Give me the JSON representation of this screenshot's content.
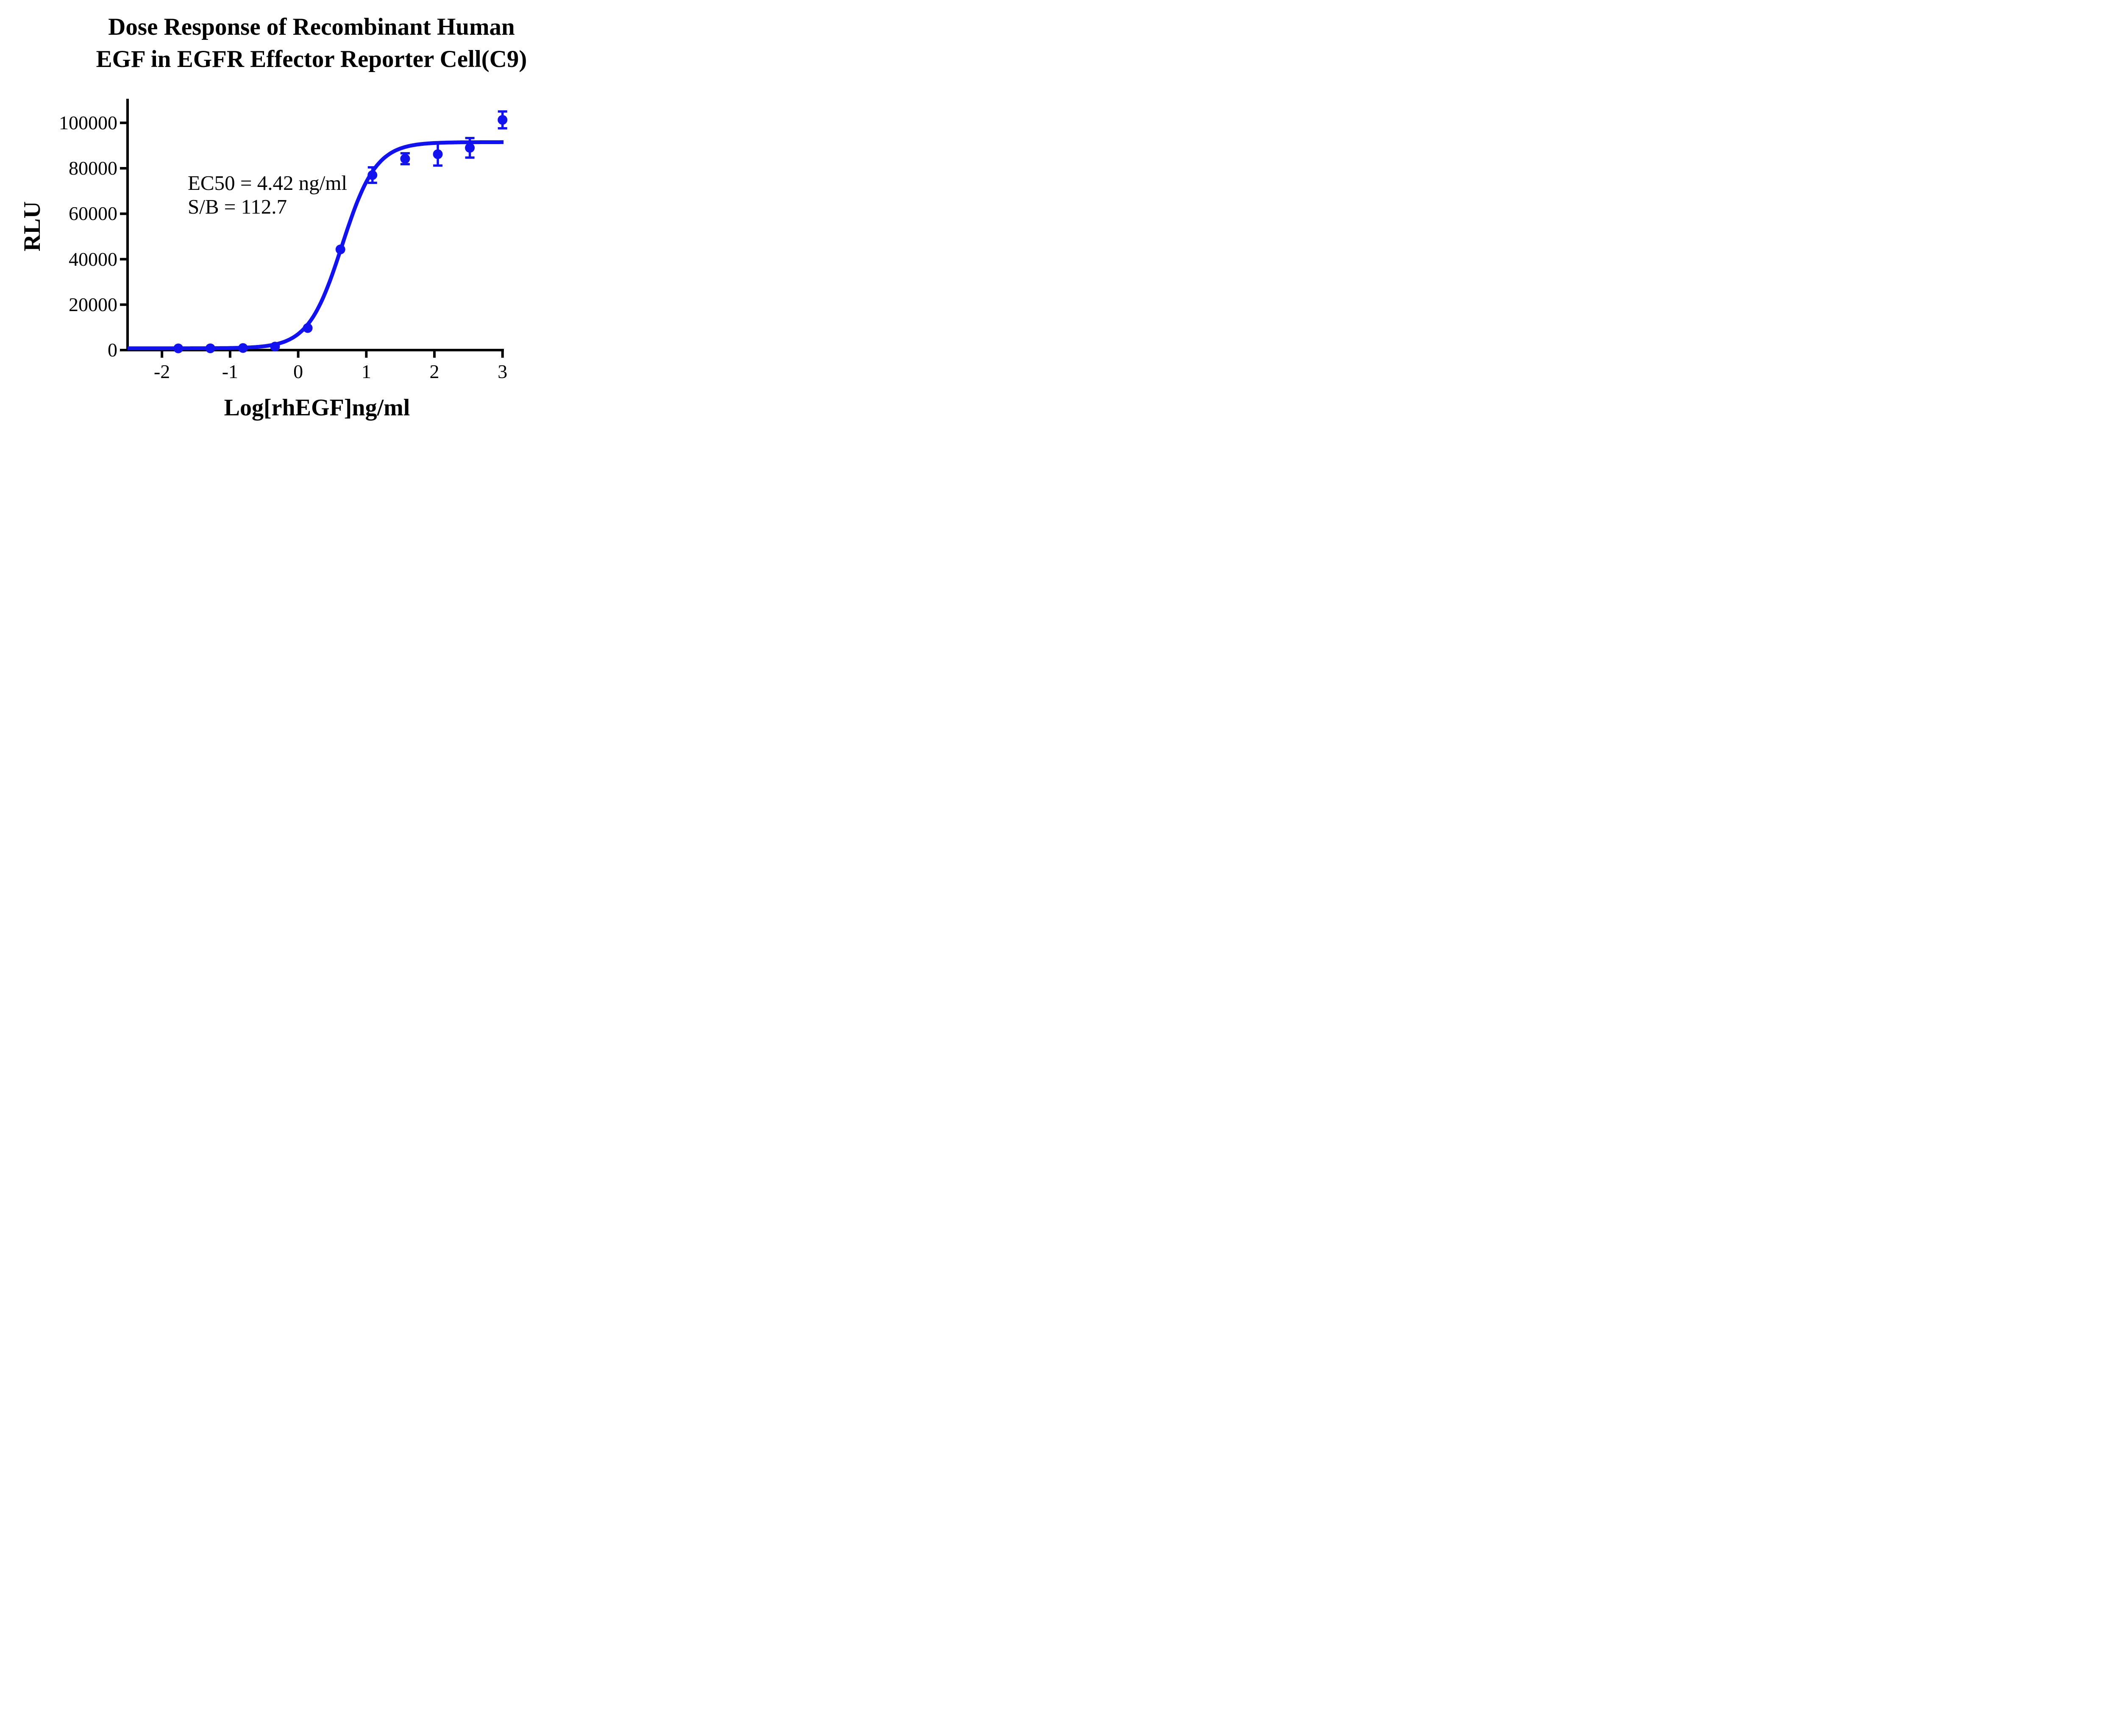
{
  "title": {
    "line1": "Dose Response of Recombinant Human",
    "line2": "EGF in EGFR Effector Reporter Cell(C9)"
  },
  "annotation": {
    "line1": "EC50 = 4.42 ng/ml",
    "line2": "S/B = 112.7"
  },
  "chart_data": {
    "type": "scatter",
    "title": "Dose Response of Recombinant Human EGF in EGFR Effector Reporter Cell(C9)",
    "xlabel": "Log[rhEGF]ng/ml",
    "ylabel": "RLU",
    "x": [
      -1.76,
      -1.29,
      -0.81,
      -0.34,
      0.14,
      0.62,
      1.09,
      1.57,
      2.05,
      2.52,
      3.0
    ],
    "y": [
      750,
      780,
      900,
      1550,
      9700,
      44300,
      77000,
      84200,
      86200,
      89000,
      101300
    ],
    "yerr": [
      0,
      0,
      0,
      0,
      0,
      0,
      3400,
      2400,
      5000,
      4300,
      3700
    ],
    "fit_curve": {
      "model": "4PL",
      "bottom": 800,
      "top": 91500,
      "logEC50": 0.645,
      "hill": 1.75,
      "ec50_label_value": "4.42 ng/ml",
      "signal_to_background": "112.7"
    },
    "xticks": [
      -2,
      -1,
      0,
      1,
      2,
      3
    ],
    "yticks": [
      0,
      20000,
      40000,
      60000,
      80000,
      100000
    ],
    "xlim": [
      -2.505,
      3.02
    ],
    "ylim": [
      0,
      110600
    ],
    "grid": false,
    "legend": "none",
    "series_color": "#1212ee",
    "axis_color": "#000000"
  }
}
